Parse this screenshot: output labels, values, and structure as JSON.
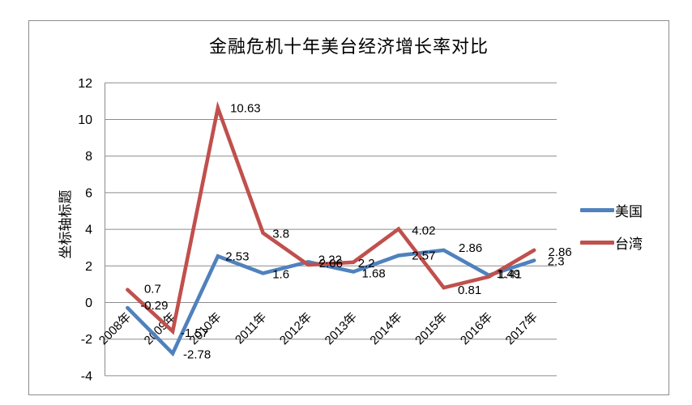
{
  "chart_data": {
    "type": "line",
    "title": "金融危机十年美台经济增长率对比",
    "ylabel": "坐标轴标题",
    "xlabel": "",
    "categories": [
      "2008年",
      "2009年",
      "2010年",
      "2011年",
      "2012年",
      "2013年",
      "2014年",
      "2015年",
      "2016年",
      "2017年"
    ],
    "series": [
      {
        "name": "美国",
        "color": "#4F81BD",
        "values": [
          -0.29,
          -2.78,
          2.53,
          1.6,
          2.22,
          1.68,
          2.57,
          2.86,
          1.49,
          2.3
        ]
      },
      {
        "name": "台湾",
        "color": "#C0504D",
        "values": [
          0.7,
          -1.57,
          10.63,
          3.8,
          2.06,
          2.2,
          4.02,
          0.81,
          1.41,
          2.86
        ]
      }
    ],
    "ylim": [
      -4,
      12
    ],
    "ytick_step": 2,
    "y_tick_labels": [
      "12",
      "10",
      "8",
      "6",
      "4",
      "2",
      "0",
      "-2",
      "-4"
    ],
    "grid": true,
    "legend_position": "right",
    "data_labels_shown": true,
    "gridline_color": "#8c8c8c",
    "border_color": "#8c8c8c",
    "text_color": "#000000"
  }
}
